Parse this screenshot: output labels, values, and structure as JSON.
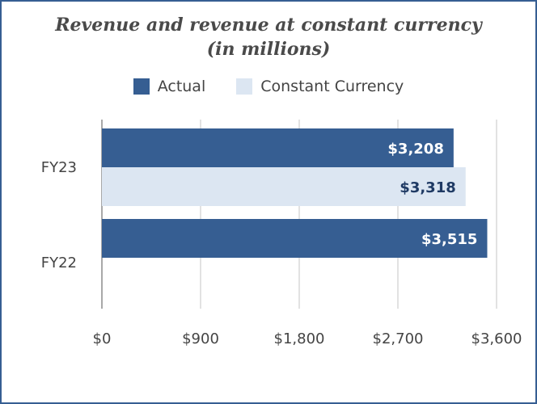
{
  "chart_data": {
    "type": "bar",
    "orientation": "horizontal",
    "title_line1": "Revenue and revenue at constant currency",
    "title_line2": "(in millions)",
    "categories": [
      "FY23",
      "FY22"
    ],
    "series": [
      {
        "name": "Actual",
        "values": [
          3208,
          3515
        ],
        "labels": [
          "$3,208",
          "$3,515"
        ],
        "color": "#365e92",
        "label_color": "#ffffff"
      },
      {
        "name": "Constant Currency",
        "values": [
          3318,
          null
        ],
        "labels": [
          "$3,318",
          ""
        ],
        "color": "#dce6f2",
        "label_color": "#1f3a64"
      }
    ],
    "xlim": [
      0,
      3600
    ],
    "xticks": [
      0,
      900,
      1800,
      2700,
      3600
    ],
    "xtick_labels": [
      "$0",
      "$900",
      "$1,800",
      "$2,700",
      "$3,600"
    ],
    "grid": true,
    "legend_position": "top"
  }
}
